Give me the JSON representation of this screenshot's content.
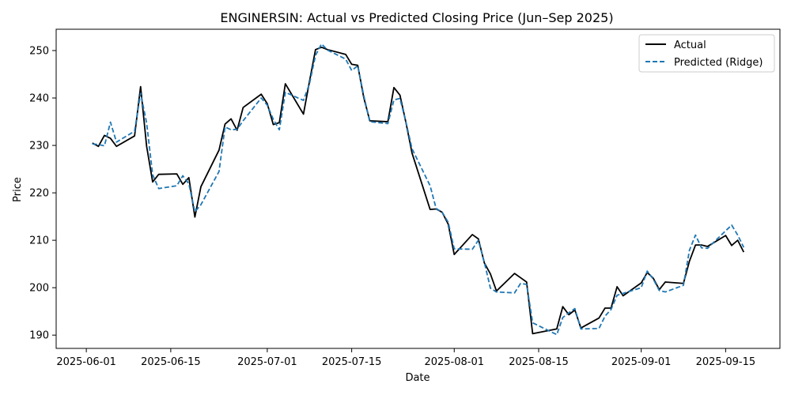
{
  "chart_data": {
    "type": "line",
    "title": "ENGINERSIN: Actual vs Predicted Closing Price (Jun–Sep 2025)",
    "xlabel": "Date",
    "ylabel": "Price",
    "xlim": [
      "2025-05-27",
      "2025-09-24"
    ],
    "ylim": [
      187.2,
      254.5
    ],
    "x_ticks": [
      {
        "date": "2025-06-01",
        "label": "2025-06-01"
      },
      {
        "date": "2025-06-15",
        "label": "2025-06-15"
      },
      {
        "date": "2025-07-01",
        "label": "2025-07-01"
      },
      {
        "date": "2025-07-15",
        "label": "2025-07-15"
      },
      {
        "date": "2025-08-01",
        "label": "2025-08-01"
      },
      {
        "date": "2025-08-15",
        "label": "2025-08-15"
      },
      {
        "date": "2025-09-01",
        "label": "2025-09-01"
      },
      {
        "date": "2025-09-15",
        "label": "2025-09-15"
      }
    ],
    "y_ticks": [
      190,
      200,
      210,
      220,
      230,
      240,
      250
    ],
    "grid": false,
    "legend": {
      "position": "top-right"
    },
    "series": [
      {
        "name": "Actual",
        "color": "#000000",
        "style": "solid",
        "points": [
          [
            "2025-06-02",
            230.5
          ],
          [
            "2025-06-03",
            229.8
          ],
          [
            "2025-06-04",
            232.1
          ],
          [
            "2025-06-05",
            231.5
          ],
          [
            "2025-06-06",
            229.8
          ],
          [
            "2025-06-09",
            232.0
          ],
          [
            "2025-06-10",
            242.4
          ],
          [
            "2025-06-11",
            229.8
          ],
          [
            "2025-06-12",
            222.3
          ],
          [
            "2025-06-13",
            223.9
          ],
          [
            "2025-06-16",
            224.0
          ],
          [
            "2025-06-17",
            221.8
          ],
          [
            "2025-06-18",
            223.2
          ],
          [
            "2025-06-19",
            214.9
          ],
          [
            "2025-06-20",
            221.3
          ],
          [
            "2025-06-23",
            229.0
          ],
          [
            "2025-06-24",
            234.5
          ],
          [
            "2025-06-25",
            235.6
          ],
          [
            "2025-06-26",
            233.2
          ],
          [
            "2025-06-27",
            238.0
          ],
          [
            "2025-06-30",
            240.8
          ],
          [
            "2025-07-01",
            238.8
          ],
          [
            "2025-07-02",
            234.4
          ],
          [
            "2025-07-03",
            234.8
          ],
          [
            "2025-07-04",
            243.0
          ],
          [
            "2025-07-07",
            236.6
          ],
          [
            "2025-07-08",
            243.5
          ],
          [
            "2025-07-09",
            250.2
          ],
          [
            "2025-07-10",
            250.7
          ],
          [
            "2025-07-11",
            250.2
          ],
          [
            "2025-07-14",
            249.2
          ],
          [
            "2025-07-15",
            247.1
          ],
          [
            "2025-07-16",
            246.9
          ],
          [
            "2025-07-17",
            240.1
          ],
          [
            "2025-07-18",
            235.2
          ],
          [
            "2025-07-21",
            235.0
          ],
          [
            "2025-07-22",
            242.2
          ],
          [
            "2025-07-23",
            240.6
          ],
          [
            "2025-07-24",
            234.8
          ],
          [
            "2025-07-25",
            228.4
          ],
          [
            "2025-07-28",
            216.5
          ],
          [
            "2025-07-29",
            216.6
          ],
          [
            "2025-07-30",
            215.9
          ],
          [
            "2025-07-31",
            213.4
          ],
          [
            "2025-08-01",
            207.0
          ],
          [
            "2025-08-04",
            211.2
          ],
          [
            "2025-08-05",
            210.3
          ],
          [
            "2025-08-06",
            205.2
          ],
          [
            "2025-08-07",
            202.9
          ],
          [
            "2025-08-08",
            199.3
          ],
          [
            "2025-08-11",
            203.0
          ],
          [
            "2025-08-12",
            202.1
          ],
          [
            "2025-08-13",
            201.2
          ],
          [
            "2025-08-14",
            190.3
          ],
          [
            "2025-08-18",
            191.3
          ],
          [
            "2025-08-19",
            196.0
          ],
          [
            "2025-08-20",
            194.3
          ],
          [
            "2025-08-21",
            195.3
          ],
          [
            "2025-08-22",
            191.5
          ],
          [
            "2025-08-25",
            193.6
          ],
          [
            "2025-08-26",
            195.7
          ],
          [
            "2025-08-27",
            195.7
          ],
          [
            "2025-08-28",
            200.2
          ],
          [
            "2025-08-29",
            198.3
          ],
          [
            "2025-09-01",
            201.0
          ],
          [
            "2025-09-02",
            203.2
          ],
          [
            "2025-09-03",
            202.0
          ],
          [
            "2025-09-04",
            199.6
          ],
          [
            "2025-09-05",
            201.2
          ],
          [
            "2025-09-08",
            200.9
          ],
          [
            "2025-09-09",
            205.6
          ],
          [
            "2025-09-10",
            209.0
          ],
          [
            "2025-09-11",
            209.0
          ],
          [
            "2025-09-12",
            208.7
          ],
          [
            "2025-09-15",
            211.0
          ],
          [
            "2025-09-16",
            208.9
          ],
          [
            "2025-09-17",
            210.0
          ],
          [
            "2025-09-18",
            207.5
          ]
        ]
      },
      {
        "name": "Predicted (Ridge)",
        "color": "#1f77b4",
        "style": "dashed",
        "points": [
          [
            "2025-06-02",
            230.3
          ],
          [
            "2025-06-03",
            230.2
          ],
          [
            "2025-06-04",
            229.9
          ],
          [
            "2025-06-05",
            234.9
          ],
          [
            "2025-06-06",
            230.7
          ],
          [
            "2025-06-09",
            233.0
          ],
          [
            "2025-06-10",
            241.0
          ],
          [
            "2025-06-11",
            234.7
          ],
          [
            "2025-06-12",
            223.8
          ],
          [
            "2025-06-13",
            220.9
          ],
          [
            "2025-06-16",
            221.5
          ],
          [
            "2025-06-17",
            223.6
          ],
          [
            "2025-06-18",
            221.9
          ],
          [
            "2025-06-19",
            216.0
          ],
          [
            "2025-06-20",
            217.5
          ],
          [
            "2025-06-23",
            224.5
          ],
          [
            "2025-06-24",
            233.9
          ],
          [
            "2025-06-25",
            233.3
          ],
          [
            "2025-06-26",
            233.4
          ],
          [
            "2025-06-27",
            235.2
          ],
          [
            "2025-06-30",
            240.0
          ],
          [
            "2025-07-01",
            238.5
          ],
          [
            "2025-07-02",
            235.5
          ],
          [
            "2025-07-03",
            233.3
          ],
          [
            "2025-07-04",
            241.2
          ],
          [
            "2025-07-07",
            239.5
          ],
          [
            "2025-07-08",
            243.0
          ],
          [
            "2025-07-09",
            249.0
          ],
          [
            "2025-07-10",
            251.4
          ],
          [
            "2025-07-11",
            250.1
          ],
          [
            "2025-07-14",
            248.2
          ],
          [
            "2025-07-15",
            245.8
          ],
          [
            "2025-07-16",
            246.8
          ],
          [
            "2025-07-17",
            240.5
          ],
          [
            "2025-07-18",
            235.0
          ],
          [
            "2025-07-21",
            234.6
          ],
          [
            "2025-07-22",
            239.6
          ],
          [
            "2025-07-23",
            239.9
          ],
          [
            "2025-07-24",
            234.9
          ],
          [
            "2025-07-25",
            229.3
          ],
          [
            "2025-07-28",
            221.5
          ],
          [
            "2025-07-29",
            216.7
          ],
          [
            "2025-07-30",
            215.9
          ],
          [
            "2025-07-31",
            213.8
          ],
          [
            "2025-08-01",
            208.2
          ],
          [
            "2025-08-04",
            208.1
          ],
          [
            "2025-08-05",
            210.0
          ],
          [
            "2025-08-06",
            205.3
          ],
          [
            "2025-08-07",
            199.9
          ],
          [
            "2025-08-08",
            199.1
          ],
          [
            "2025-08-11",
            198.9
          ],
          [
            "2025-08-12",
            200.9
          ],
          [
            "2025-08-13",
            200.7
          ],
          [
            "2025-08-14",
            192.6
          ],
          [
            "2025-08-18",
            190.1
          ],
          [
            "2025-08-19",
            193.7
          ],
          [
            "2025-08-20",
            194.7
          ],
          [
            "2025-08-21",
            195.6
          ],
          [
            "2025-08-22",
            191.3
          ],
          [
            "2025-08-25",
            191.4
          ],
          [
            "2025-08-26",
            194.0
          ],
          [
            "2025-08-27",
            195.4
          ],
          [
            "2025-08-28",
            198.4
          ],
          [
            "2025-08-29",
            198.8
          ],
          [
            "2025-09-01",
            200.0
          ],
          [
            "2025-09-02",
            203.5
          ],
          [
            "2025-09-03",
            201.8
          ],
          [
            "2025-09-04",
            199.4
          ],
          [
            "2025-09-05",
            199.1
          ],
          [
            "2025-09-08",
            200.5
          ],
          [
            "2025-09-09",
            207.9
          ],
          [
            "2025-09-10",
            211.1
          ],
          [
            "2025-09-11",
            208.4
          ],
          [
            "2025-09-12",
            208.3
          ],
          [
            "2025-09-15",
            212.0
          ],
          [
            "2025-09-16",
            213.2
          ],
          [
            "2025-09-17",
            211.1
          ],
          [
            "2025-09-18",
            208.5
          ]
        ]
      }
    ]
  }
}
